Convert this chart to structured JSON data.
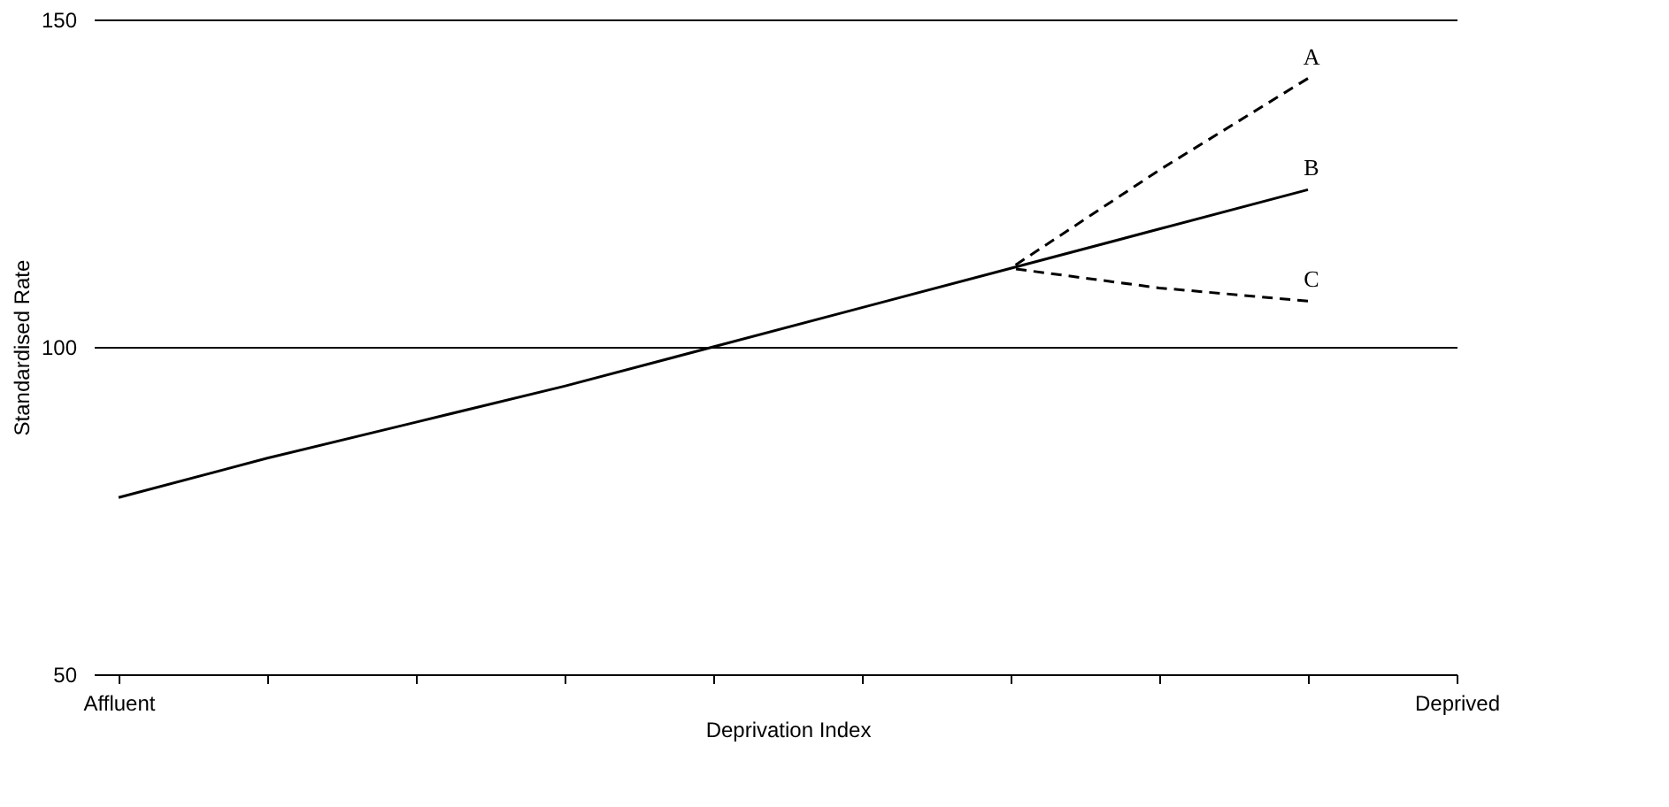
{
  "chart_data": {
    "type": "line",
    "xlabel": "Deprivation Index",
    "ylabel": "Standardised Rate",
    "categories": [
      "Affluent",
      null,
      null,
      null,
      null,
      null,
      null,
      null,
      null,
      "Deprived"
    ],
    "ylim": [
      50,
      150
    ],
    "yticks": [
      50,
      100,
      150
    ],
    "grid": "y",
    "marker": "none",
    "series": [
      {
        "name": "A",
        "color": "#000000",
        "line_style": "dashed",
        "values": [
          null,
          null,
          null,
          null,
          null,
          null,
          112,
          127,
          141,
          null
        ]
      },
      {
        "name": "B",
        "color": "#000000",
        "line_style": "solid",
        "values": [
          77,
          83,
          88.5,
          94,
          100,
          106,
          112,
          118,
          124,
          null
        ]
      },
      {
        "name": "C",
        "color": "#000000",
        "line_style": "dashed",
        "values": [
          null,
          null,
          null,
          null,
          null,
          null,
          112,
          109,
          107,
          null
        ]
      }
    ]
  }
}
